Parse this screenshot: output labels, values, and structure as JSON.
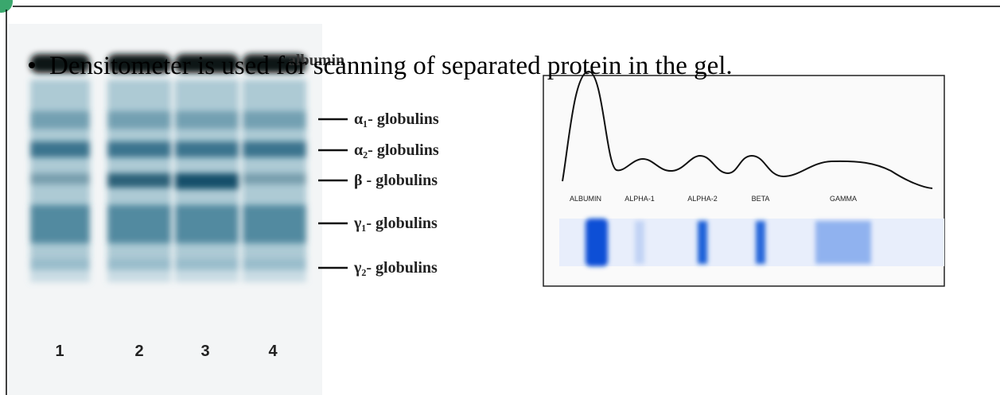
{
  "slide": {
    "bullet": "Densitometer is used for scanning of separated protein in the gel.",
    "gel": {
      "top_label": "albumin",
      "labels": [
        "α₁- globulins",
        "α₂- globulins",
        "β - globulins",
        "γ₁- globulins",
        "γ₂- globulins"
      ],
      "lanes": [
        "1",
        "2",
        "3",
        "4"
      ]
    },
    "densitometer": {
      "labels": [
        "ALBUMIN",
        "ALPHA-1",
        "ALPHA-2",
        "BETA",
        "GAMMA"
      ]
    }
  }
}
